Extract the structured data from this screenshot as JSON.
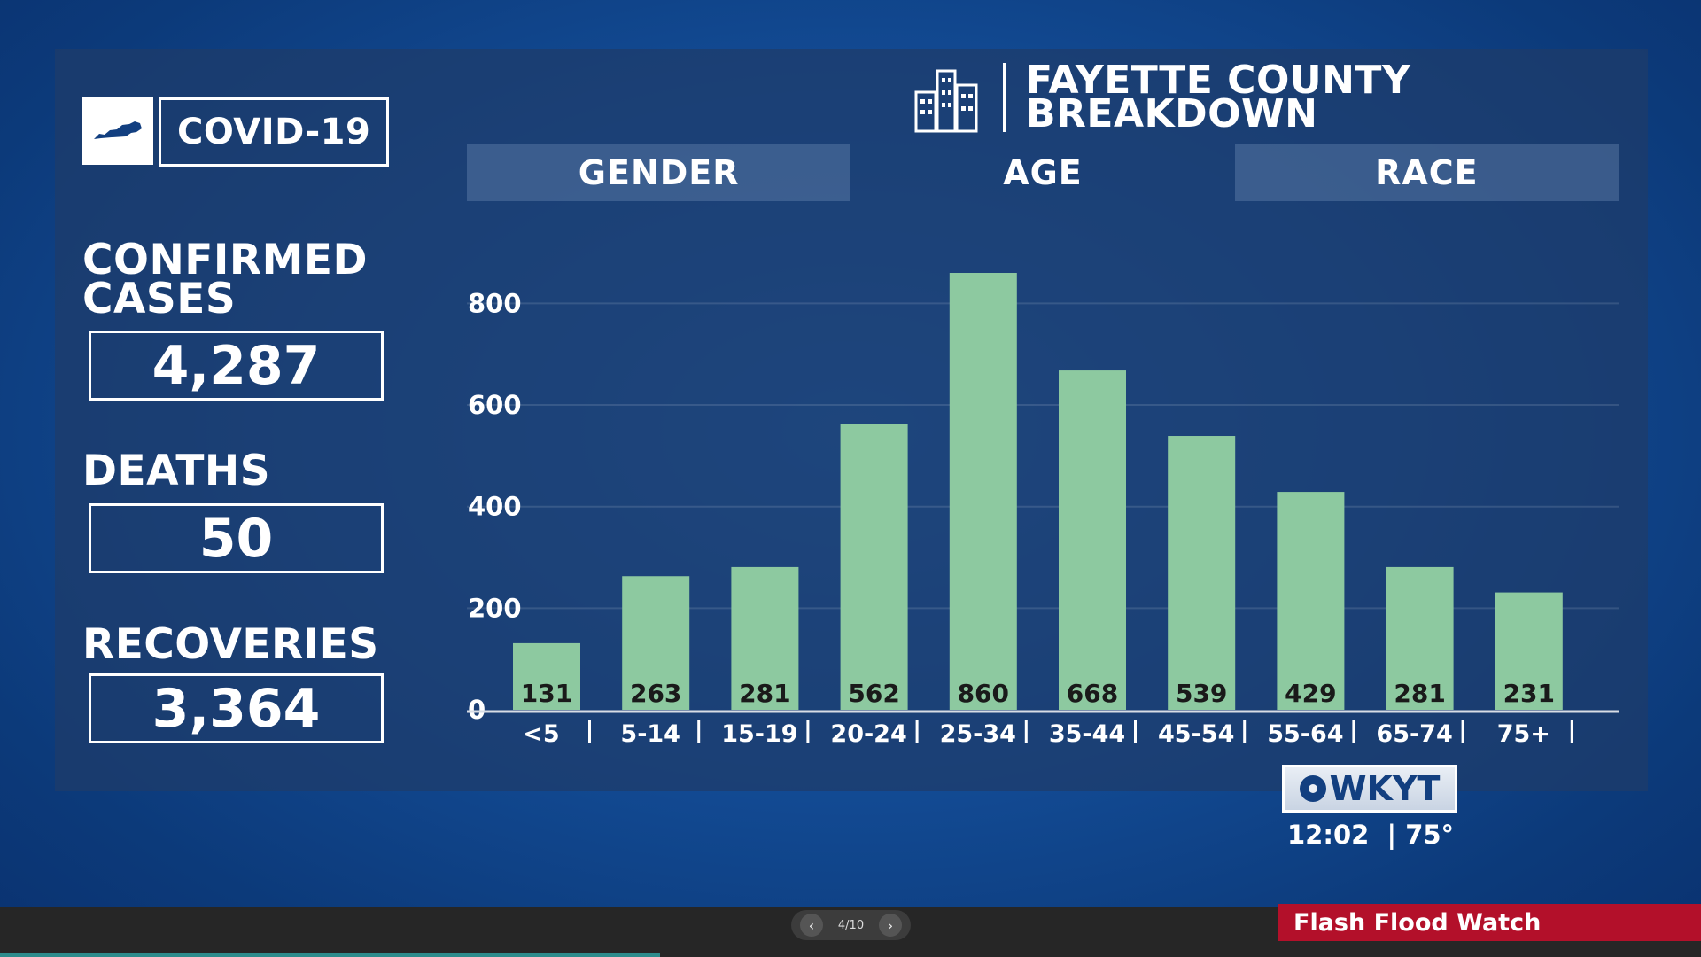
{
  "brand": {
    "label": "COVID-19"
  },
  "stats": {
    "confirmed_label": "CONFIRMED",
    "confirmed_label2": "CASES",
    "confirmed_value": "4,287",
    "deaths_label": "DEATHS",
    "deaths_value": "50",
    "recoveries_label": "RECOVERIES",
    "recoveries_value": "3,364"
  },
  "header": {
    "title_line1": "FAYETTE COUNTY",
    "title_line2": "BREAKDOWN"
  },
  "tabs": [
    "GENDER",
    "AGE",
    "RACE"
  ],
  "chart_data": {
    "type": "bar",
    "categories": [
      "<5",
      "5-14",
      "15-19",
      "20-24",
      "25-34",
      "35-44",
      "45-54",
      "55-64",
      "65-74",
      "75+"
    ],
    "values": [
      131,
      263,
      281,
      562,
      860,
      668,
      539,
      429,
      281,
      231
    ],
    "yticks": [
      0,
      200,
      400,
      600,
      800
    ],
    "ylim": [
      0,
      860
    ],
    "bar_color": "#8dc9a0",
    "grid": true
  },
  "station": {
    "logo": "WKYT",
    "time": "12:02",
    "temp": "75°"
  },
  "pager": {
    "label": "4/10"
  },
  "alert": {
    "label": "Flash Flood Watch"
  }
}
